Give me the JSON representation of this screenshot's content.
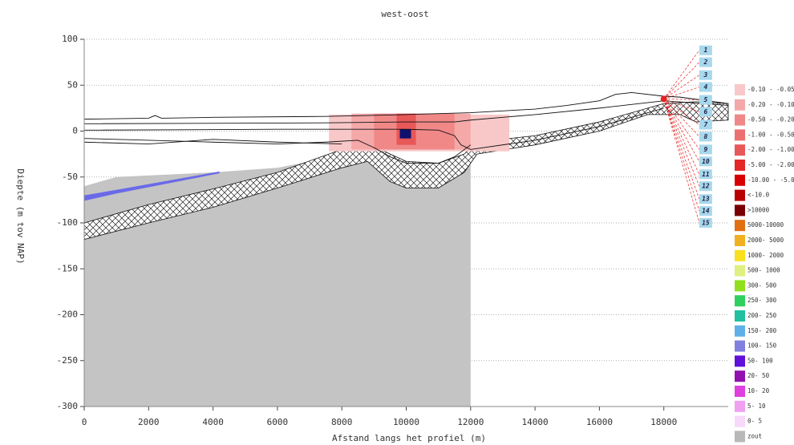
{
  "chart_data": {
    "type": "cross-section",
    "title": "west-oost",
    "x_label": "Afstand langs het profiel (m)",
    "y_label": "Diepte (m tov NAP)",
    "xlim": [
      0,
      20000
    ],
    "ylim": [
      -300,
      100
    ],
    "xticks": [
      0,
      2000,
      4000,
      6000,
      8000,
      10000,
      12000,
      14000,
      16000,
      18000
    ],
    "yticks": [
      -300,
      -250,
      -200,
      -150,
      -100,
      -50,
      0,
      50,
      100
    ],
    "grid": true,
    "areas": [
      {
        "color": "#c4c4c4",
        "x": [
          0,
          0,
          1000,
          4000,
          6000,
          7500,
          8500,
          9000,
          9500,
          10000,
          11000,
          11800,
          12000,
          12000
        ],
        "y": [
          -300,
          -60,
          -50,
          -45,
          -40,
          -30,
          -18,
          -35,
          -45,
          -50,
          -48,
          -35,
          -30,
          -300
        ]
      },
      {
        "color": "#6a6ae8",
        "x": [
          0,
          1000,
          4200,
          4200,
          1000,
          0
        ],
        "y": [
          -76,
          -68,
          -46,
          -44,
          -64,
          -70
        ]
      }
    ],
    "cells": [
      {
        "color": "#f8c8c8",
        "x": [
          7600,
          13200
        ],
        "y": [
          -22,
          18
        ]
      },
      {
        "color": "#f4a8a8",
        "x": [
          8300,
          12000
        ],
        "y": [
          -20,
          19
        ]
      },
      {
        "color": "#f08888",
        "x": [
          9000,
          11500
        ],
        "y": [
          -20,
          19
        ]
      },
      {
        "color": "#e85858",
        "x": [
          9700,
          10300
        ],
        "y": [
          -15,
          19
        ]
      },
      {
        "color": "#10106e",
        "x": [
          9800,
          10150
        ],
        "y": [
          -8,
          2
        ]
      }
    ],
    "clay": {
      "x": [
        0,
        2000,
        4000,
        6000,
        8000,
        8800,
        9500,
        10000,
        11000,
        11800,
        12200,
        14000,
        16000,
        18000,
        19000,
        20000,
        20000,
        19000,
        18500,
        17500,
        16000,
        14000,
        12200,
        11800,
        11000,
        10000,
        9500,
        8800,
        8000,
        6000,
        4000,
        2000,
        0
      ],
      "y": [
        -100,
        -80,
        -63,
        -45,
        -20,
        -13,
        -25,
        -33,
        -35,
        -25,
        -12,
        -5,
        10,
        30,
        32,
        30,
        12,
        10,
        18,
        18,
        0,
        -15,
        -25,
        -45,
        -62,
        -62,
        -55,
        -33,
        -40,
        -62,
        -83,
        -100,
        -118
      ]
    },
    "lines": [
      {
        "x": [
          0,
          2000,
          2200,
          2400,
          4000,
          7500,
          10000,
          12000,
          13000,
          14000,
          15000,
          16000,
          16500,
          17000,
          18000,
          18500,
          20000
        ],
        "y": [
          13,
          14,
          17,
          14,
          15,
          16,
          18,
          20,
          22,
          24,
          28,
          33,
          40,
          42,
          38,
          37,
          30
        ]
      },
      {
        "x": [
          0,
          7500,
          10000,
          11500,
          12000,
          14000,
          16000,
          18000,
          20000
        ],
        "y": [
          8,
          9,
          10,
          10,
          12,
          18,
          25,
          33,
          28
        ]
      },
      {
        "x": [
          0,
          6000,
          9000,
          10000,
          11000,
          11500,
          11700,
          12000,
          14000,
          16000,
          18000
        ],
        "y": [
          1,
          2,
          2,
          2,
          1,
          -5,
          -15,
          -20,
          -10,
          5,
          25
        ]
      },
      {
        "x": [
          0,
          2000,
          4000,
          6000,
          7500,
          8500,
          9000,
          9500,
          10000,
          11000,
          11500,
          12000
        ],
        "y": [
          -8,
          -10,
          -12,
          -14,
          -12,
          -10,
          -18,
          -28,
          -35,
          -35,
          -28,
          -15
        ]
      },
      {
        "x": [
          0,
          2000,
          4000,
          6000,
          8000
        ],
        "y": [
          -12,
          -14,
          -9,
          -12,
          -14
        ]
      }
    ],
    "well": {
      "x": 18000,
      "y": 35,
      "color": "#e82020"
    },
    "filters": {
      "x": 19300,
      "labels": [
        "1",
        "2",
        "3",
        "4",
        "5",
        "6",
        "7",
        "8",
        "9",
        "10",
        "11",
        "12",
        "13",
        "14",
        "15"
      ],
      "y": [
        88,
        75,
        61,
        48,
        34,
        21,
        7,
        -6,
        -20,
        -33,
        -47,
        -60,
        -74,
        -87,
        -100
      ]
    },
    "legend": [
      {
        "label": "-0.10 - -0.05",
        "color": "#f8c8c8"
      },
      {
        "label": "-0.20 - -0.10",
        "color": "#f4a8a8"
      },
      {
        "label": "-0.50 - -0.20",
        "color": "#f08888"
      },
      {
        "label": "-1.00 - -0.50",
        "color": "#ec7070"
      },
      {
        "label": "-2.00 - -1.00",
        "color": "#e85858"
      },
      {
        "label": "-5.00 - -2.00",
        "color": "#e42828"
      },
      {
        "label": "-10.00 - -5.00",
        "color": "#d80000"
      },
      {
        "label": "<-10.0",
        "color": "#b80000"
      },
      {
        "label": ">10000",
        "color": "#780000"
      },
      {
        "label": "5000-10000",
        "color": "#e07010"
      },
      {
        "label": "2000- 5000",
        "color": "#f0b020"
      },
      {
        "label": "1000- 2000",
        "color": "#f8e020"
      },
      {
        "label": "500- 1000",
        "color": "#e0f080"
      },
      {
        "label": "300- 500",
        "color": "#90e020"
      },
      {
        "label": "250- 300",
        "color": "#30d060"
      },
      {
        "label": "200- 250",
        "color": "#20c0a0"
      },
      {
        "label": "150- 200",
        "color": "#60b0e8"
      },
      {
        "label": "100- 150",
        "color": "#8080e0"
      },
      {
        "label": "50- 100",
        "color": "#6010d8"
      },
      {
        "label": "20- 50",
        "color": "#9010b0"
      },
      {
        "label": "10- 20",
        "color": "#e040e0"
      },
      {
        "label": "5- 10",
        "color": "#f0a0f0"
      },
      {
        "label": "0- 5",
        "color": "#f8d8f8"
      },
      {
        "label": "zout",
        "color": "#b8b8b8"
      }
    ]
  }
}
